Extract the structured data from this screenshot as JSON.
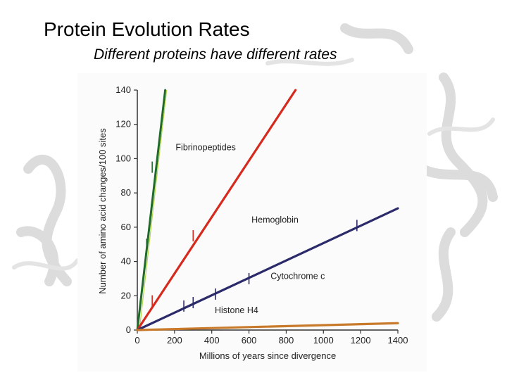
{
  "slide": {
    "title": "Protein Evolution Rates",
    "subtitle": "Different proteins have different rates"
  },
  "chart_data": {
    "type": "line",
    "xlabel": "Millions of years since divergence",
    "ylabel": "Number of amino acid changes/100 sites",
    "xlim": [
      0,
      1400
    ],
    "ylim": [
      0,
      140
    ],
    "x_ticks": [
      "0",
      "200",
      "400",
      "600",
      "800",
      "1000",
      "1200",
      "1400"
    ],
    "y_ticks": [
      "0",
      "20",
      "40",
      "60",
      "80",
      "100",
      "120",
      "140"
    ],
    "grid": false,
    "series": [
      {
        "name": "Fibrinopeptides",
        "color": "#1e6b2a",
        "points": [
          [
            0,
            0
          ],
          [
            150,
            140
          ]
        ],
        "ticks": [
          [
            50,
            50
          ],
          [
            75,
            70
          ],
          [
            80,
            95
          ]
        ]
      },
      {
        "name": "Hemoglobin",
        "color": "#d62a1e",
        "points": [
          [
            0,
            0
          ],
          [
            850,
            140
          ]
        ],
        "ticks": [
          [
            80,
            17
          ],
          [
            300,
            55
          ]
        ]
      },
      {
        "name": "Cytochrome c",
        "color": "#2b2a6a",
        "points": [
          [
            0,
            0
          ],
          [
            1400,
            71
          ]
        ],
        "ticks": [
          [
            250,
            14
          ],
          [
            300,
            16
          ],
          [
            420,
            21
          ],
          [
            600,
            30
          ],
          [
            1180,
            61
          ]
        ]
      },
      {
        "name": "Histone H4",
        "color": "#c87a2a",
        "points": [
          [
            0,
            0
          ],
          [
            1400,
            4
          ]
        ],
        "ticks": []
      }
    ]
  }
}
